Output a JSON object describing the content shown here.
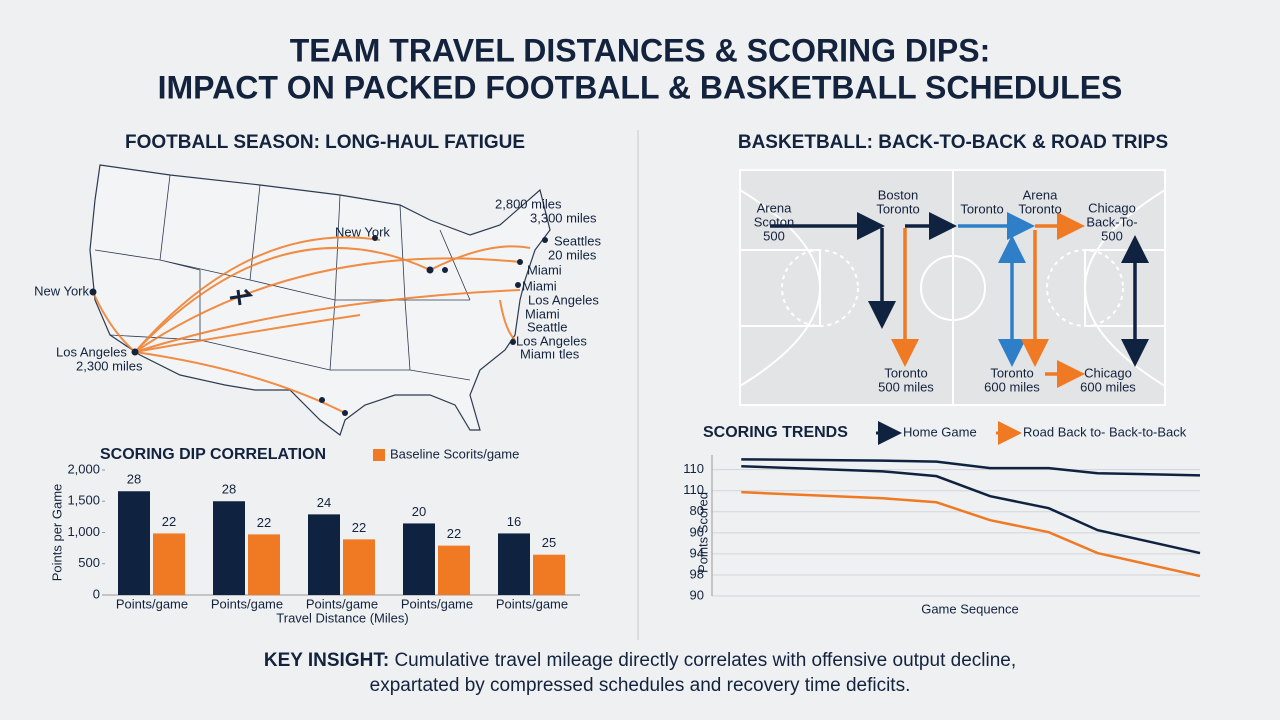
{
  "header": {
    "title": [
      "TEAM TRAVEL DISTANCES & SCORING DIPS:",
      "IMPACT ON PACKED FOOTBALL & BASKETBALL SCHEDULES"
    ]
  },
  "map": {
    "title": "FOOTBALL SEASON: LONG-HAUL FATIGUE",
    "labels": [
      "2,800 miles",
      "3,300 miles",
      "New York",
      "Seattles",
      "20 miles",
      "Miami",
      "Miami",
      "Los Angeles",
      "Miami",
      "Seattle",
      "Los Angeles",
      "Miamı tles",
      "New York",
      "Los Angeles",
      "2,300 miles"
    ]
  },
  "court": {
    "title": "BASKETBALL: BACK-TO-BACK & ROAD TRIPS",
    "labels": [
      [
        "Arena",
        "Scoton",
        "500"
      ],
      [
        "Boston",
        "Toronto"
      ],
      [
        "Toronto"
      ],
      [
        "Arena",
        "Toronto"
      ],
      [
        "Chicago",
        "Back-To-",
        "500"
      ],
      [
        "Toronto",
        "500 miles"
      ],
      [
        "Toronto",
        "600 miles"
      ],
      [
        "Chicago",
        "600 miles"
      ]
    ]
  },
  "chart_data": [
    {
      "type": "bar",
      "title": "SCORING DIP CORRELATION",
      "x_label": "Travel Distance (Miles)",
      "y_label": "Points per Game",
      "categories": [
        "Points/game",
        "Points/game",
        "Points/game",
        "Points/game",
        "Points/game"
      ],
      "series": [
        {
          "color": "#0f2340",
          "values": [
            1660,
            1500,
            1290,
            1145,
            985
          ],
          "annotations": [
            28,
            28,
            24,
            20,
            16
          ]
        },
        {
          "name": "Baseline Scorits/game",
          "color": "#f07a24",
          "values": [
            985,
            970,
            890,
            790,
            645
          ],
          "annotations": [
            22,
            22,
            22,
            22,
            25
          ]
        }
      ],
      "ylim": [
        0,
        2000
      ],
      "yticks": [
        0,
        500,
        {
          "value": 1000,
          "label": "1,000"
        },
        {
          "value": 1500,
          "label": "1,500"
        },
        {
          "value": 2000,
          "label": "2,000"
        }
      ]
    },
    {
      "type": "line",
      "title": "SCORING TRENDS",
      "x_label": "Game Sequence",
      "y_label": "Points Scored",
      "x": [
        0.6,
        3.5,
        4.6,
        5.7,
        6.9,
        7.9,
        10
      ],
      "xlim": [
        0,
        10
      ],
      "series": [
        {
          "name": "Home Game",
          "color": "#0f2340",
          "values": [
            6.49,
            6.43,
            6.38,
            6.07,
            6.07,
            5.83,
            5.73
          ]
        },
        {
          "color": "#0f2340",
          "values": [
            6.16,
            5.92,
            5.69,
            4.74,
            4.17,
            3.13,
            2.04
          ]
        },
        {
          "name": "Road Back to- Back-to-Back",
          "color": "#f07a24",
          "values": [
            4.93,
            4.64,
            4.45,
            3.6,
            3.03,
            2.04,
            0.95
          ]
        }
      ],
      "ylim": [
        0,
        6.6
      ],
      "yticks": [
        {
          "value": 0,
          "label": "90"
        },
        {
          "value": 1,
          "label": "98"
        },
        {
          "value": 2,
          "label": "94"
        },
        {
          "value": 3,
          "label": "90"
        },
        {
          "value": 4,
          "label": "80"
        },
        {
          "value": 5,
          "label": "110"
        },
        {
          "value": 6,
          "label": "110"
        }
      ],
      "grid": true
    }
  ],
  "insight": {
    "label": "KEY INSIGHT:",
    "lines": [
      "Cumulative travel mileage directly correlates with offensive output decline,",
      "expartated by compressed schedules and recovery time deficits."
    ]
  }
}
